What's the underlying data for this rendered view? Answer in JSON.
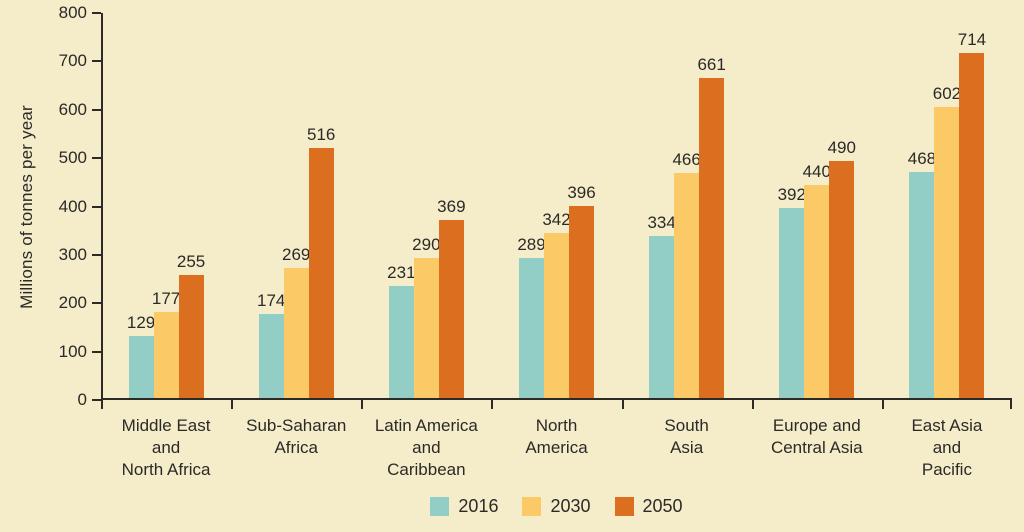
{
  "chart_data": {
    "type": "bar",
    "title": "",
    "xlabel": "",
    "ylabel": "Millions of tonnes per year",
    "ylim": [
      0,
      800
    ],
    "ytick_step": 100,
    "grid": false,
    "legend_position": "bottom-center",
    "legend_entries": [
      "2016",
      "2030",
      "2050"
    ],
    "categories": [
      [
        "Middle East",
        "and",
        "North Africa"
      ],
      [
        "Sub-Saharan",
        "Africa"
      ],
      [
        "Latin America",
        "and",
        "Caribbean"
      ],
      [
        "North",
        "America"
      ],
      [
        "South",
        "Asia"
      ],
      [
        "Europe and",
        "Central Asia"
      ],
      [
        "East Asia",
        "and",
        "Pacific"
      ]
    ],
    "series": [
      {
        "name": "2016",
        "color": "#92CEC6",
        "values": [
          129,
          174,
          231,
          289,
          334,
          392,
          468
        ]
      },
      {
        "name": "2030",
        "color": "#FCC967",
        "values": [
          177,
          269,
          290,
          342,
          466,
          440,
          602
        ]
      },
      {
        "name": "2050",
        "color": "#DB6E1F",
        "values": [
          255,
          516,
          369,
          396,
          661,
          490,
          714
        ]
      }
    ],
    "colors": {
      "background": "#F5ECCA",
      "axis": "#2B2A27",
      "text": "#2B2A27"
    }
  }
}
